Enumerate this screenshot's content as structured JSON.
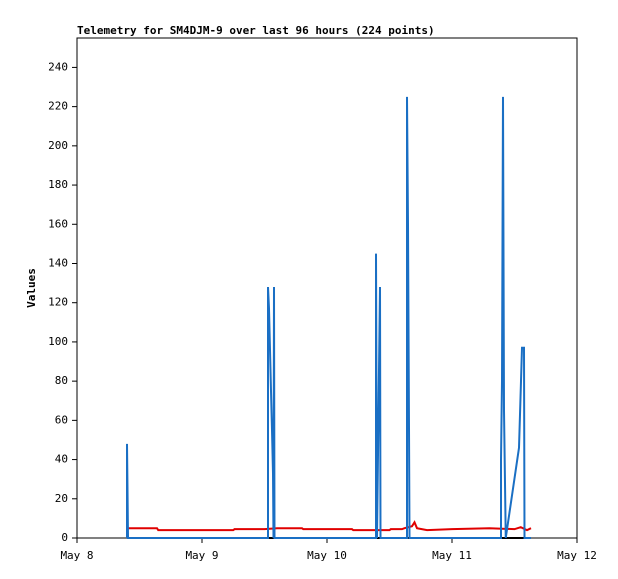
{
  "chart_data": {
    "type": "line",
    "title": "Telemetry for SM4DJM-9 over last 96 hours (224 points)",
    "y_label": "Values",
    "xlim": [
      0,
      4
    ],
    "xticks": [
      {
        "value": 0,
        "label": "May 8"
      },
      {
        "value": 1,
        "label": "May 9"
      },
      {
        "value": 2,
        "label": "May 10"
      },
      {
        "value": 3,
        "label": "May 11"
      },
      {
        "value": 4,
        "label": "May 12"
      }
    ],
    "ylim": [
      0,
      255
    ],
    "yticks": [
      0,
      20,
      40,
      60,
      80,
      100,
      120,
      140,
      160,
      180,
      200,
      220,
      240
    ],
    "grid": false,
    "series": [
      {
        "color": "#000000",
        "x": [
          0.4,
          3.632
        ],
        "values": [
          0,
          0
        ]
      },
      {
        "color": "#e00000",
        "x": [
          0.4,
          0.64,
          0.65,
          1.25,
          1.26,
          1.5,
          1.6,
          1.8,
          1.81,
          2.2,
          2.21,
          2.5,
          2.51,
          2.6,
          2.62,
          2.68,
          2.7,
          2.72,
          2.8,
          3.0,
          3.3,
          3.5,
          3.55,
          3.6,
          3.632
        ],
        "values": [
          5,
          5,
          4,
          4,
          4.5,
          4.5,
          5,
          5,
          4.5,
          4.5,
          4,
          4,
          4.5,
          4.5,
          5,
          6,
          8,
          5,
          4,
          4.5,
          5,
          4.5,
          5.5,
          4,
          5
        ]
      },
      {
        "color": "#1a6fc4",
        "x": [
          0.4,
          0.4,
          0.404,
          0.408,
          1.528,
          1.528,
          1.536,
          1.544,
          1.552,
          1.56,
          1.568,
          1.572,
          1.576,
          1.58,
          2.392,
          2.392,
          2.4,
          2.424,
          2.428,
          2.64,
          2.64,
          2.648,
          2.656,
          2.66,
          3.392,
          3.392,
          3.4,
          3.408,
          3.416,
          3.43,
          3.536,
          3.56,
          3.576,
          3.58,
          3.632
        ],
        "values": [
          0,
          48,
          25,
          0,
          0,
          128,
          117,
          96,
          75,
          55,
          33,
          0,
          128,
          0,
          0,
          145,
          0,
          128,
          0,
          0,
          225,
          160,
          56,
          0,
          0,
          40,
          80,
          225,
          65,
          0,
          46,
          97,
          97,
          0,
          0
        ]
      }
    ]
  }
}
